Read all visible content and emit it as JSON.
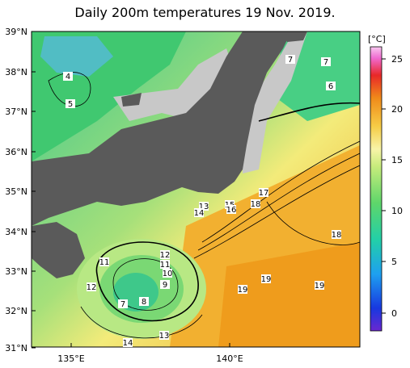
{
  "title": "Daily 200m temperatures 19 Nov. 2019.",
  "colors": {
    "land": "#5a5a5a",
    "nodata": "#c8c8c8",
    "cold": "#2cd29a",
    "cool": "#88e07a",
    "mild": "#f4f08c",
    "warm": "#f5c23a",
    "hot": "#f0a21e"
  },
  "map": {
    "lat_labels": [
      "39°N",
      "38°N",
      "37°N",
      "36°N",
      "35°N",
      "34°N",
      "33°N",
      "32°N",
      "31°N"
    ],
    "lon_labels": [
      "135°E",
      "140°E"
    ],
    "contour_labels": [
      "4",
      "5",
      "7",
      "7",
      "6",
      "17",
      "18",
      "15",
      "16",
      "13",
      "14",
      "18",
      "12",
      "11",
      "11",
      "10",
      "12",
      "9",
      "7",
      "8",
      "19",
      "19",
      "19",
      "13",
      "14"
    ]
  },
  "colorbar": {
    "unit": "[°C]",
    "ticks": [
      "25",
      "20",
      "15",
      "10",
      "5",
      "0"
    ]
  }
}
